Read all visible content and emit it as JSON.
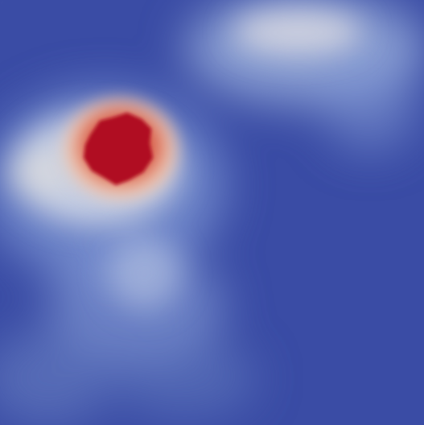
{
  "render": {
    "colormap": "coolwarm",
    "colors": {
      "background": "#3a4ca5",
      "low": "#3b4cc0",
      "mid_low": "#7b9ff9",
      "mid": "#dddddd",
      "mid_high": "#f49a7b",
      "high": "#b40426"
    }
  }
}
